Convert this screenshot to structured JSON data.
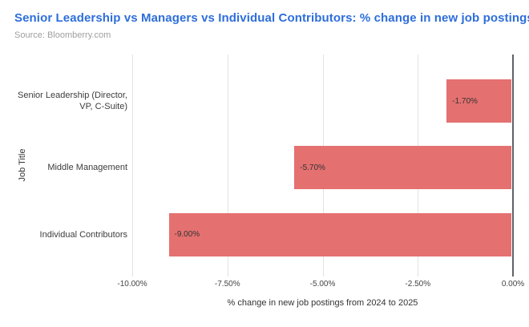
{
  "header": {
    "title": "Senior Leadership vs Managers vs Individual Contributors: % change in new job postings",
    "source": "Source: Bloomberry.com"
  },
  "chart_data": {
    "type": "bar",
    "orientation": "horizontal",
    "title": "Senior Leadership vs Managers vs Individual Contributors: % change in new job postings",
    "source": "Source: Bloomberry.com",
    "categories": [
      "Senior Leadership (Director, VP, C-Suite)",
      "Middle Management",
      "Individual Contributors"
    ],
    "category_display_lines": [
      [
        "Senior Leadership (Director,",
        "VP, C-Suite)"
      ],
      [
        "Middle Management"
      ],
      [
        "Individual Contributors"
      ]
    ],
    "values": [
      -1.7,
      -5.7,
      -9.0
    ],
    "bar_labels": [
      "-1.70%",
      "-5.70%",
      "-9.00%"
    ],
    "xlabel": "% change in new job postings from 2024 to 2025",
    "ylabel": "Job Title",
    "xlim": [
      -10,
      0
    ],
    "xticks": [
      -10,
      -7.5,
      -5,
      -2.5,
      0
    ],
    "xtick_labels": [
      "-10.00%",
      "-7.50%",
      "-5.00%",
      "-2.50%",
      "0.00%"
    ],
    "grid": true,
    "legend": false,
    "colors": {
      "bar": "#e57070",
      "title": "#2d6edb",
      "source_text": "#9e9e9e",
      "gridline": "#e2e2e2",
      "baseline": "#5f6368",
      "bar_label_text": "#333333",
      "category_text": "#3c3c3c",
      "tick_text": "#444444",
      "axis_title_text": "#333333"
    }
  }
}
